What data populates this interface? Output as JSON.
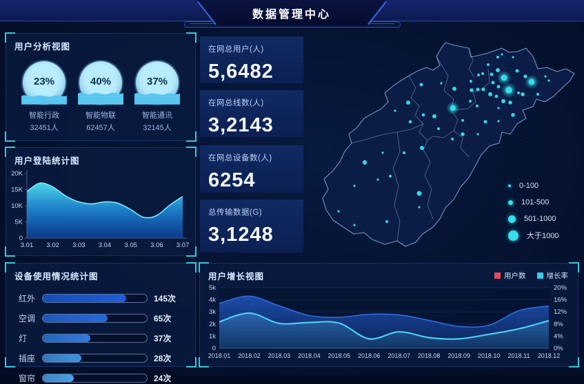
{
  "header": {
    "title": "数据管理中心"
  },
  "panels": {
    "user_analysis": {
      "title": "用户分析视图",
      "items": [
        {
          "percent": "23%",
          "name": "智能行政",
          "count": "32451人"
        },
        {
          "percent": "40%",
          "name": "智能物联",
          "count": "62457人"
        },
        {
          "percent": "37%",
          "name": "智能通讯",
          "count": "32145人"
        }
      ]
    },
    "login_stats": {
      "title": "用户登陆统计图"
    },
    "device_usage": {
      "title": "设备使用情况统计图"
    },
    "user_growth": {
      "title": "用户增长视图",
      "legend": [
        {
          "label": "用户数",
          "color": "#e8485e"
        },
        {
          "label": "增长率",
          "color": "#35cdee"
        }
      ]
    }
  },
  "stats": [
    {
      "label": "在网总用户(人)",
      "value": "5,6482"
    },
    {
      "label": "在网总线数(人)",
      "value": "3,2143"
    },
    {
      "label": "在网总设备数(人)",
      "value": "6254"
    },
    {
      "label": "总传输数据(G)",
      "value": "3,1248"
    }
  ],
  "map": {
    "dot_color": "#38e2ec",
    "legend": [
      {
        "label": "0-100",
        "r": 2
      },
      {
        "label": "101-500",
        "r": 3.5
      },
      {
        "label": "501-1000",
        "r": 5.5
      },
      {
        "label": "大于1000",
        "r": 7.5
      }
    ],
    "dots": [
      [
        303,
        73,
        4.5
      ],
      [
        310,
        91,
        5
      ],
      [
        343,
        79,
        4.5
      ],
      [
        229,
        117,
        4.2
      ],
      [
        294,
        62,
        3
      ],
      [
        285,
        68,
        2.5
      ],
      [
        322,
        63,
        2.5
      ],
      [
        334,
        71,
        2.7
      ],
      [
        287,
        80,
        2.5
      ],
      [
        295,
        86,
        2.5
      ],
      [
        283,
        97,
        3
      ],
      [
        292,
        100,
        2.5
      ],
      [
        302,
        107,
        3
      ],
      [
        312,
        109,
        2.8
      ],
      [
        330,
        97,
        2.8
      ],
      [
        324,
        95,
        2
      ],
      [
        352,
        97,
        2
      ],
      [
        273,
        90,
        2.5
      ],
      [
        265,
        90,
        2.5
      ],
      [
        256,
        91,
        2.8
      ],
      [
        255,
        78,
        2
      ],
      [
        266,
        69,
        2
      ],
      [
        272,
        67,
        2
      ],
      [
        280,
        54,
        2
      ],
      [
        294,
        43,
        2
      ],
      [
        300,
        39,
        1.6
      ],
      [
        316,
        43,
        1.6
      ],
      [
        363,
        71,
        1.6
      ],
      [
        368,
        77,
        1.6
      ],
      [
        316,
        127,
        2.8
      ],
      [
        276,
        137,
        2.5
      ],
      [
        295,
        117,
        1.6
      ],
      [
        295,
        136,
        1.6
      ],
      [
        264,
        114,
        2
      ],
      [
        254,
        107,
        2
      ],
      [
        183,
        83,
        2.5
      ],
      [
        212,
        81,
        1.6
      ],
      [
        231,
        89,
        3
      ],
      [
        164,
        109,
        3
      ],
      [
        145,
        121,
        1.6
      ],
      [
        186,
        127,
        2.3
      ],
      [
        202,
        129,
        3
      ],
      [
        167,
        137,
        2.3
      ],
      [
        208,
        147,
        2
      ],
      [
        228,
        162,
        2
      ],
      [
        243,
        135,
        2
      ],
      [
        243,
        155,
        2.8
      ],
      [
        265,
        155,
        1.6
      ],
      [
        184,
        175,
        3
      ],
      [
        158,
        182,
        2
      ],
      [
        127,
        182,
        1.6
      ],
      [
        101,
        196,
        3.2
      ],
      [
        138,
        216,
        2
      ],
      [
        120,
        221,
        1.6
      ],
      [
        86,
        230,
        1.6
      ],
      [
        180,
        241,
        3.5
      ],
      [
        180,
        261,
        1.6
      ],
      [
        63,
        267,
        1.6
      ],
      [
        133,
        282,
        2
      ],
      [
        86,
        287,
        1.6
      ]
    ]
  },
  "chart_data": [
    {
      "type": "area",
      "title": "用户登陆统计图",
      "x_min": "3.01",
      "x_max": "3.07",
      "xticks": [
        "3.01",
        "3.02",
        "3.03",
        "3.04",
        "3.05",
        "3.06",
        "3.07"
      ],
      "yticks": [
        "0",
        "5K",
        "10K",
        "15K",
        "20K"
      ],
      "ylim": [
        0,
        20
      ],
      "values_k": [
        14.4,
        17,
        15.8,
        13,
        11.2,
        10.6,
        11.2,
        10.8,
        8.8,
        6.4,
        7.0,
        10.2,
        12.9
      ]
    },
    {
      "type": "bar",
      "orientation": "horizontal",
      "title": "设备使用情况统计图",
      "categories": [
        "红外",
        "空调",
        "灯",
        "插座",
        "窗帘"
      ],
      "values": [
        145,
        65,
        37,
        28,
        24
      ],
      "unit": "次",
      "bar_pcts": [
        0.8,
        0.62,
        0.46,
        0.37,
        0.3
      ],
      "colors": [
        "#1d5dd8",
        "#2569da",
        "#2f7bdf",
        "#3f93e2",
        "#4aa2e6"
      ]
    },
    {
      "type": "area",
      "title": "用户增长视图",
      "categories": [
        "2018.01",
        "2018.02",
        "2018.03",
        "2018.04",
        "2018.05",
        "2018.06",
        "2018.07",
        "2018.08",
        "2018.09",
        "2018.10",
        "2018.11",
        "2018.12"
      ],
      "series": [
        {
          "name": "用户数",
          "axis": "left",
          "unit": "k",
          "color": "#2f6be0",
          "values": [
            3.7,
            4.3,
            3.5,
            2.7,
            2.55,
            2.8,
            2.75,
            2.3,
            1.8,
            1.9,
            3.1,
            3.5
          ]
        },
        {
          "name": "增长率",
          "axis": "right",
          "unit": "%",
          "color": "#4ecdf2",
          "values": [
            8.7,
            11.6,
            8.2,
            8.5,
            8.3,
            3.1,
            5.4,
            3.5,
            3.1,
            4.6,
            6.4,
            9.1
          ]
        }
      ],
      "ylim_left": [
        0,
        5
      ],
      "ylim_right": [
        0,
        20
      ],
      "yticks_left": [
        "0",
        "1k",
        "2k",
        "3k",
        "4k",
        "5k"
      ],
      "yticks_right": [
        "0%",
        "4%",
        "8%",
        "12%",
        "16%",
        "20%"
      ],
      "legend_position": "top-right",
      "grid": true
    }
  ]
}
